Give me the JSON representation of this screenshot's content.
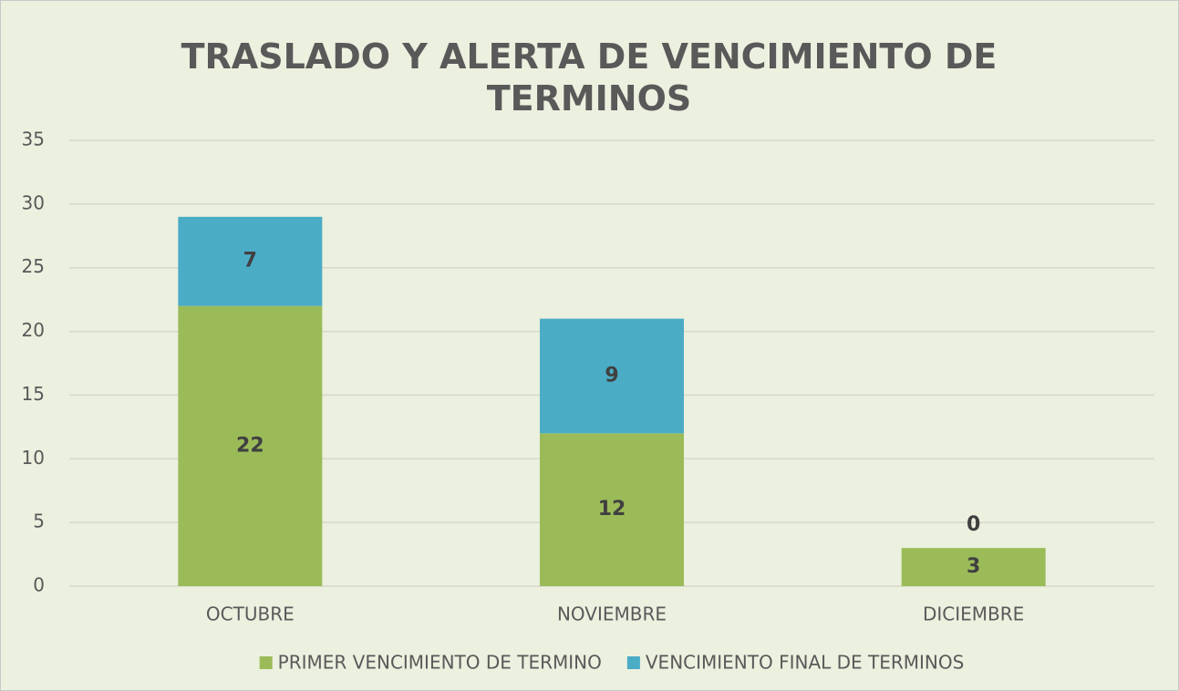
{
  "chart_data": {
    "type": "stacked_bar",
    "title": "TRASLADO Y ALERTA DE VENCIMIENTO DE TERMINOS",
    "categories": [
      "OCTUBRE",
      "NOVIEMBRE",
      "DICIEMBRE"
    ],
    "series": [
      {
        "name": "PRIMER VENCIMIENTO DE TERMINO",
        "color": "#9bbb59",
        "values": [
          22,
          12,
          3
        ]
      },
      {
        "name": "VENCIMIENTO FINAL DE TERMINOS",
        "color": "#4bacc6",
        "values": [
          7,
          9,
          0
        ]
      }
    ],
    "ylim": [
      0,
      35
    ],
    "yticks": [
      0,
      5,
      10,
      15,
      20,
      25,
      30,
      35
    ],
    "grid": true,
    "legend": "bottom"
  }
}
